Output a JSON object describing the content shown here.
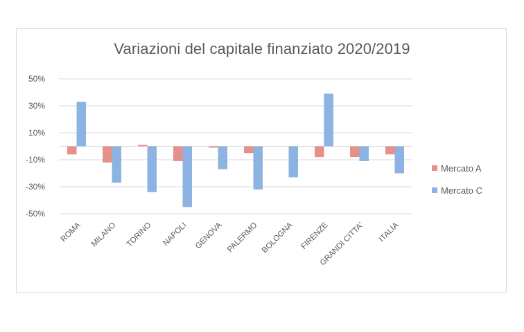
{
  "chart_data": {
    "type": "bar",
    "title": "Variazioni del capitale finanziato 2020/2019",
    "xlabel": "",
    "ylabel": "",
    "ylim": [
      -50,
      50
    ],
    "yticks": [
      "50%",
      "30%",
      "10%",
      "-10%",
      "-30%",
      "-50%"
    ],
    "ytick_values": [
      50,
      30,
      10,
      -10,
      -30,
      -50
    ],
    "grid": true,
    "legend_position": "right",
    "categories": [
      "ROMA",
      "MILANO",
      "TORINO",
      "NAPOLI",
      "GENOVA",
      "PALERMO",
      "BOLOGNA",
      "FIRENZE",
      "GRANDI CITTA'",
      "ITALIA"
    ],
    "series": [
      {
        "name": "Mercato A",
        "color": "#e6908c",
        "values": [
          -6,
          -12,
          1,
          -11,
          -1,
          -5,
          0,
          -8,
          -8,
          -6
        ]
      },
      {
        "name": "Mercato C",
        "color": "#8db3e2",
        "values": [
          33,
          -27,
          -34,
          -45,
          -17,
          -32,
          -23,
          39,
          -11,
          -20
        ]
      }
    ]
  }
}
